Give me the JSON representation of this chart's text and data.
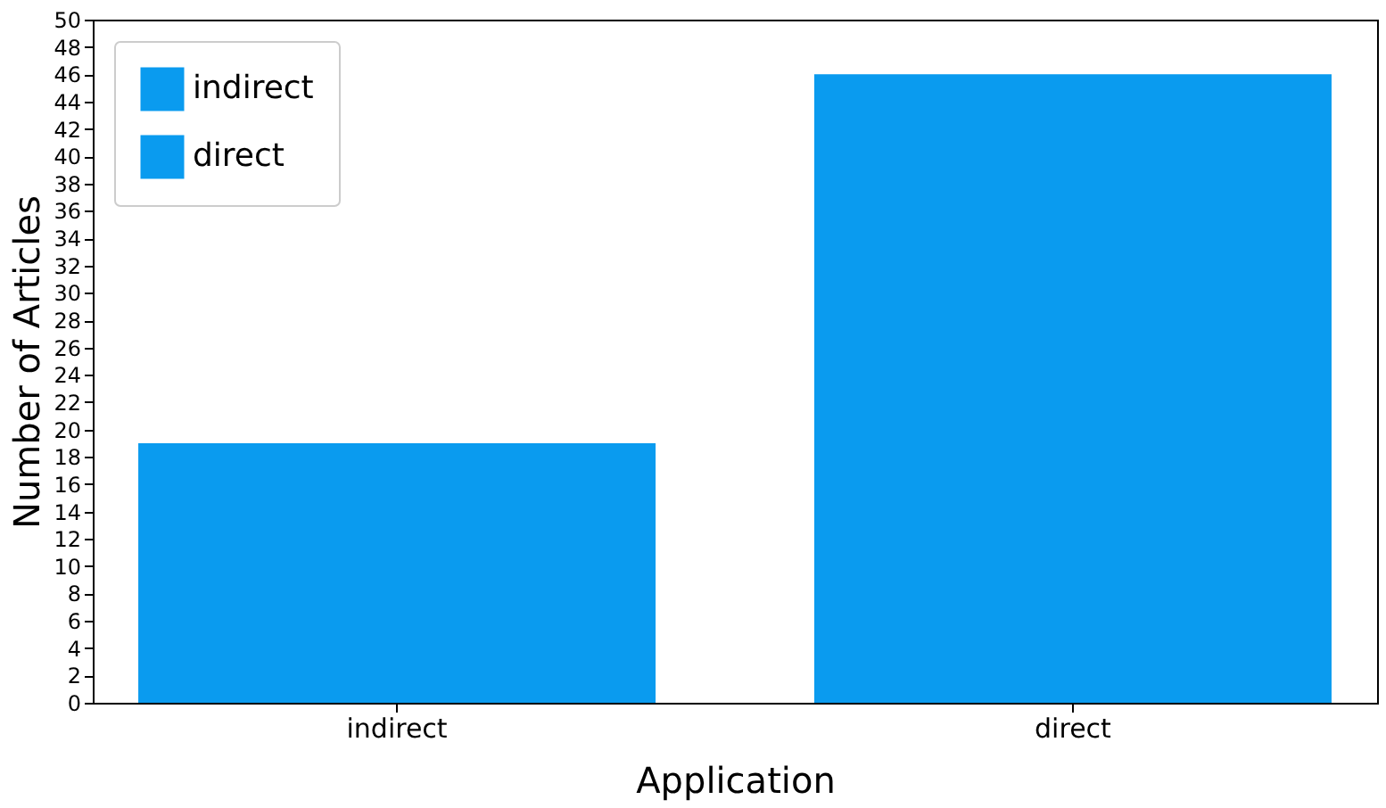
{
  "chart_data": {
    "type": "bar",
    "xlabel": "Application",
    "ylabel": "Number of Articles",
    "categories": [
      "indirect",
      "direct"
    ],
    "series": [
      {
        "name": "indirect",
        "color": "#0a9bef",
        "values": [
          19,
          null
        ]
      },
      {
        "name": "direct",
        "color": "#0a9bef",
        "values": [
          null,
          46
        ]
      }
    ],
    "ylim": [
      0,
      50
    ],
    "yticks": [
      0,
      2,
      4,
      6,
      8,
      10,
      12,
      14,
      16,
      18,
      20,
      22,
      24,
      26,
      28,
      30,
      32,
      34,
      36,
      38,
      40,
      42,
      44,
      46,
      48,
      50
    ],
    "grid": false,
    "legend": "top left"
  }
}
